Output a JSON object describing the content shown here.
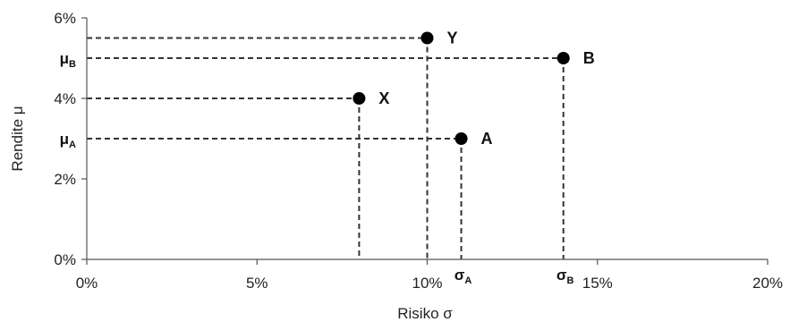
{
  "chart_data": {
    "type": "scatter",
    "xlabel": "Risiko σ",
    "ylabel": "Rendite μ",
    "xlim": [
      0,
      20
    ],
    "ylim": [
      0,
      6
    ],
    "x_ticks": [
      {
        "value": 0,
        "label": "0%"
      },
      {
        "value": 5,
        "label": "5%"
      },
      {
        "value": 10,
        "label": "10%"
      },
      {
        "value": 15,
        "label": "15%"
      },
      {
        "value": 20,
        "label": "20%"
      }
    ],
    "y_ticks": [
      {
        "value": 0,
        "label": "0%"
      },
      {
        "value": 2,
        "label": "2%"
      },
      {
        "value": 4,
        "label": "4%"
      },
      {
        "value": 6,
        "label": "6%"
      }
    ],
    "points": [
      {
        "label": "Y",
        "x": 10,
        "y": 5.5
      },
      {
        "label": "B",
        "x": 14,
        "y": 5.0
      },
      {
        "label": "X",
        "x": 8,
        "y": 4.0
      },
      {
        "label": "A",
        "x": 11,
        "y": 3.0
      }
    ],
    "y_markers": [
      {
        "main": "μ",
        "sub": "B",
        "value": 5.0
      },
      {
        "main": "μ",
        "sub": "A",
        "value": 3.0
      }
    ],
    "x_markers": [
      {
        "main": "σ",
        "sub": "A",
        "value": 11
      },
      {
        "main": "σ",
        "sub": "B",
        "value": 14
      }
    ],
    "dashed_guides": true,
    "grid": false,
    "legend": "none",
    "colors": {
      "points": "#000000",
      "guides": "#333333",
      "axis": "#555555"
    }
  }
}
